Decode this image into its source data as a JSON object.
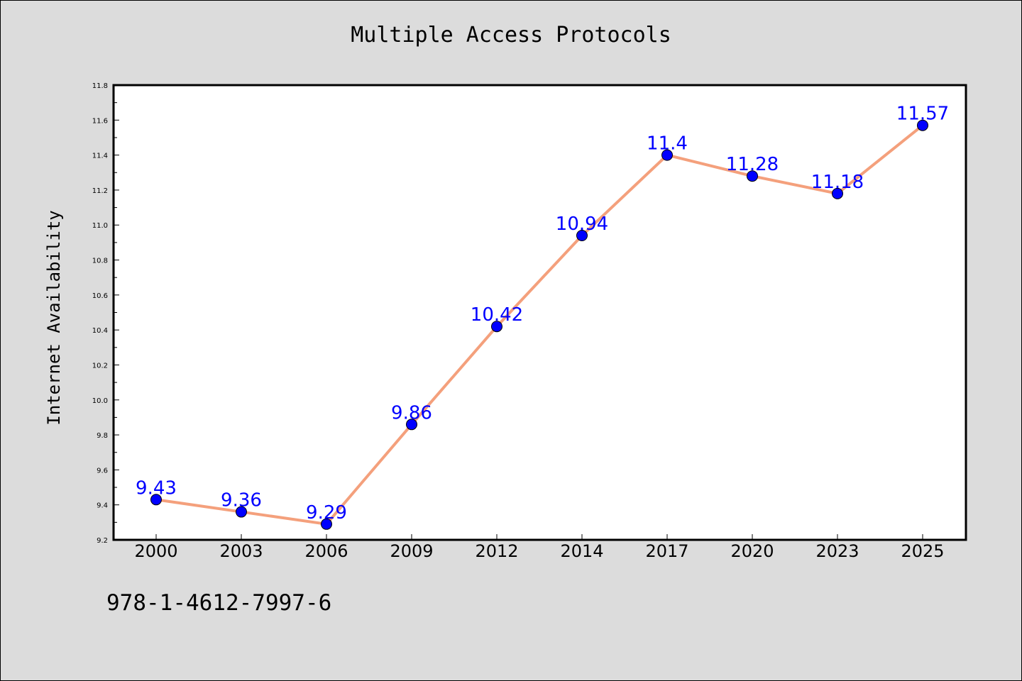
{
  "chart_data": {
    "type": "line",
    "title": "Multiple Access Protocols",
    "xlabel": "",
    "ylabel": "Internet Availability",
    "categories": [
      "2000",
      "2003",
      "2006",
      "2009",
      "2012",
      "2014",
      "2017",
      "2020",
      "2023",
      "2025"
    ],
    "series": [
      {
        "values": [
          9.43,
          9.36,
          9.29,
          9.86,
          10.42,
          10.94,
          11.4,
          11.28,
          11.18,
          11.57
        ],
        "data_labels": [
          "9.43",
          "9.36",
          "9.29",
          "9.86",
          "10.42",
          "10.94",
          "11.4",
          "11.28",
          "11.18",
          "11.57"
        ]
      }
    ],
    "ylim": [
      9.2,
      11.8
    ],
    "y_ticks": [
      "9.2",
      "9.4",
      "9.6",
      "9.8",
      "10.0",
      "10.2",
      "10.4",
      "10.6",
      "10.8",
      "11.0",
      "11.2",
      "11.4",
      "11.6",
      "11.8"
    ],
    "grid": false,
    "legend": "none",
    "colors": {
      "line": "#f4a07c",
      "marker": "#0000ff",
      "data_label": "#0000ff",
      "background": "#dcdcdc",
      "plot_background": "#ffffff"
    }
  },
  "footer": {
    "code": "978-1-4612-7997-6"
  }
}
